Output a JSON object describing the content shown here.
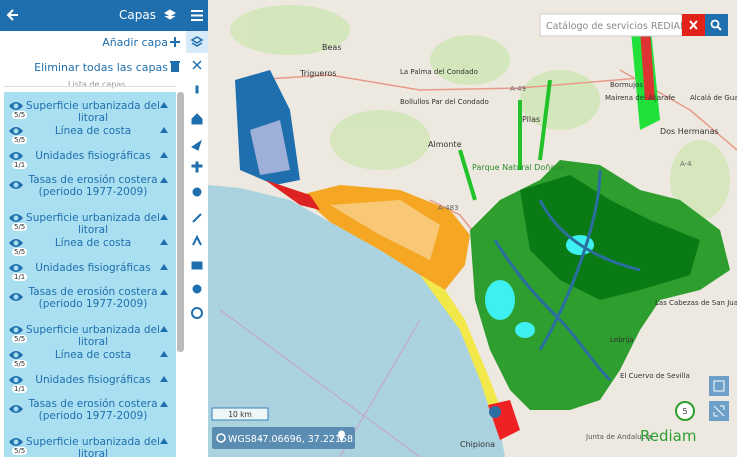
{
  "panel": {
    "title": "Capas",
    "add_layer": "Añadir capa",
    "remove_all": "Eliminar todas las capas",
    "list_label": "Lista de capas",
    "layers": [
      {
        "name": "Superficie urbanizada del litoral",
        "badge": "5/5"
      },
      {
        "name": "Línea de costa",
        "badge": "5/5"
      },
      {
        "name": "Unidades fisiográficas",
        "badge": "1/1"
      },
      {
        "name": "Tasas de erosión costera (periodo 1977-2009)"
      },
      {
        "name": "Superficie urbanizada del litoral",
        "badge": "5/5"
      },
      {
        "name": "Línea de costa",
        "badge": "5/5"
      },
      {
        "name": "Unidades fisiográficas",
        "badge": "1/1"
      },
      {
        "name": "Tasas de erosión costera (periodo 1977-2009)"
      },
      {
        "name": "Superficie urbanizada del litoral",
        "badge": "5/5"
      },
      {
        "name": "Línea de costa",
        "badge": "5/5"
      },
      {
        "name": "Unidades fisiográficas",
        "badge": "1/1"
      },
      {
        "name": "Tasas de erosión costera (periodo 1977-2009)"
      },
      {
        "name": "Superficie urbanizada del litoral",
        "badge": "5/5"
      }
    ]
  },
  "search": {
    "placeholder": "Catálogo de servicios REDIAM"
  },
  "map": {
    "labels": [
      "Beas",
      "Trigueros",
      "La Palma del Condado",
      "Bollullos Par del Condado",
      "Almonte",
      "Pilas",
      "Parque Natural Doñana",
      "A-483",
      "A-49",
      "Bormujos",
      "Mairena del Aljarafe",
      "Alcalá de Guadaíra",
      "Dos Hermanas",
      "A-4",
      "Las Cabezas de San Juan",
      "Lebrija",
      "El Cuervo de Sevilla",
      "Chipiona",
      "Junta de Andalucía",
      "Rediam"
    ],
    "scale": "10 km",
    "crs": "WGS84",
    "coordinates": "-7.06696, 37.22158",
    "counter": "5"
  }
}
